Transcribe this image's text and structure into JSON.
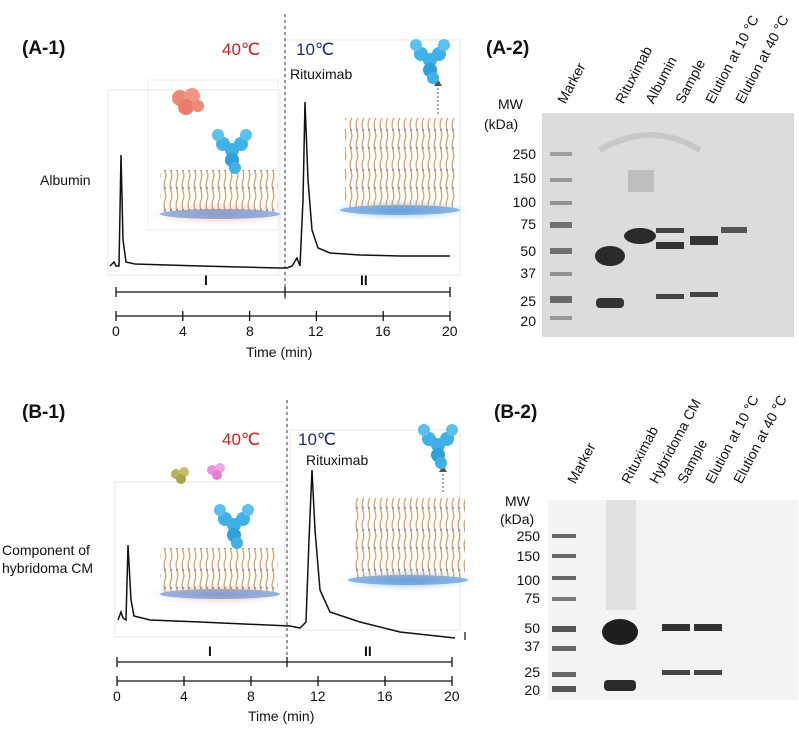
{
  "panelA1": {
    "label": "(A-1)",
    "temp_left": "40℃",
    "temp_right": "10℃",
    "peak1_label": "Albumin",
    "peak2_label": "Rituximab",
    "region_I": "I",
    "region_II": "II",
    "xticks": [
      "0",
      "4",
      "8",
      "12",
      "16",
      "20"
    ],
    "xlabel": "Time (min)"
  },
  "panelA2": {
    "label": "(A-2)",
    "mw_label": "MW",
    "mw_unit": "(kDa)",
    "markers": [
      "250",
      "150",
      "100",
      "75",
      "50",
      "37",
      "25",
      "20"
    ],
    "lanes": [
      "Marker",
      "Rituximab",
      "Albumin",
      "Sample",
      "Elution at 10 °C",
      "Elution at 40 °C"
    ]
  },
  "panelB1": {
    "label": "(B-1)",
    "temp_left": "40℃",
    "temp_right": "10℃",
    "peak1_label_line1": "Component of",
    "peak1_label_line2": "hybridoma CM",
    "peak2_label": "Rituximab",
    "region_I": "I",
    "region_II": "II",
    "xticks": [
      "0",
      "4",
      "8",
      "12",
      "16",
      "20"
    ],
    "xlabel": "Time (min)"
  },
  "panelB2": {
    "label": "(B-2)",
    "mw_label": "MW",
    "mw_unit": "(kDa)",
    "markers": [
      "250",
      "150",
      "100",
      "75",
      "50",
      "37",
      "25",
      "20"
    ],
    "lanes": [
      "Marker",
      "Rituximab",
      "Hybridoma CM",
      "Sample",
      "Elution at 10 °C",
      "Elution at 40 °C"
    ]
  },
  "colors": {
    "temp_hot": "#cc2222",
    "temp_cold": "#1f2f6f",
    "antibody": "#3fb0e8",
    "albumin": "#f08878",
    "brush": "#d9a066"
  }
}
